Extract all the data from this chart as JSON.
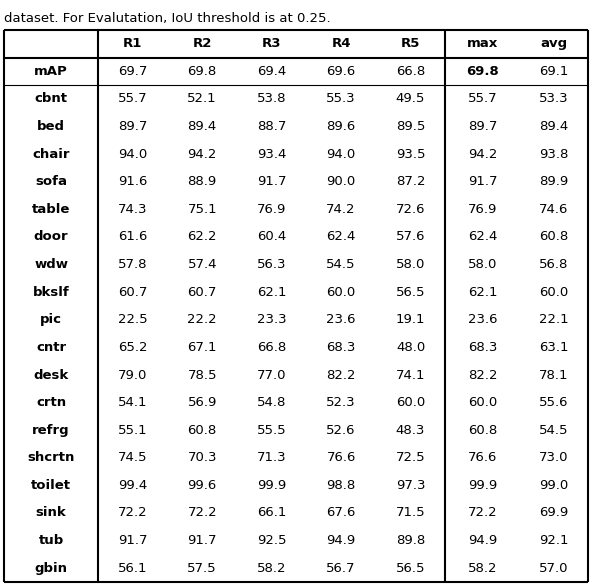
{
  "caption": "dataset. For Evalutation, IoU threshold is at 0.25.",
  "header_cols": [
    "R1",
    "R2",
    "R3",
    "R4",
    "R5",
    "max",
    "avg"
  ],
  "rows": [
    {
      "label": "mAP",
      "values": [
        69.7,
        69.8,
        69.4,
        69.6,
        66.8,
        69.8,
        69.1
      ],
      "bold_max_col": 5
    },
    {
      "label": "cbnt",
      "values": [
        55.7,
        52.1,
        53.8,
        55.3,
        49.5,
        55.7,
        53.3
      ],
      "bold_max_col": -1
    },
    {
      "label": "bed",
      "values": [
        89.7,
        89.4,
        88.7,
        89.6,
        89.5,
        89.7,
        89.4
      ],
      "bold_max_col": -1
    },
    {
      "label": "chair",
      "values": [
        94.0,
        94.2,
        93.4,
        94.0,
        93.5,
        94.2,
        93.8
      ],
      "bold_max_col": -1
    },
    {
      "label": "sofa",
      "values": [
        91.6,
        88.9,
        91.7,
        90.0,
        87.2,
        91.7,
        89.9
      ],
      "bold_max_col": -1
    },
    {
      "label": "table",
      "values": [
        74.3,
        75.1,
        76.9,
        74.2,
        72.6,
        76.9,
        74.6
      ],
      "bold_max_col": -1
    },
    {
      "label": "door",
      "values": [
        61.6,
        62.2,
        60.4,
        62.4,
        57.6,
        62.4,
        60.8
      ],
      "bold_max_col": -1
    },
    {
      "label": "wdw",
      "values": [
        57.8,
        57.4,
        56.3,
        54.5,
        58.0,
        58.0,
        56.8
      ],
      "bold_max_col": -1
    },
    {
      "label": "bkslf",
      "values": [
        60.7,
        60.7,
        62.1,
        60.0,
        56.5,
        62.1,
        60.0
      ],
      "bold_max_col": -1
    },
    {
      "label": "pic",
      "values": [
        22.5,
        22.2,
        23.3,
        23.6,
        19.1,
        23.6,
        22.1
      ],
      "bold_max_col": -1
    },
    {
      "label": "cntr",
      "values": [
        65.2,
        67.1,
        66.8,
        68.3,
        48.0,
        68.3,
        63.1
      ],
      "bold_max_col": -1
    },
    {
      "label": "desk",
      "values": [
        79.0,
        78.5,
        77.0,
        82.2,
        74.1,
        82.2,
        78.1
      ],
      "bold_max_col": -1
    },
    {
      "label": "crtn",
      "values": [
        54.1,
        56.9,
        54.8,
        52.3,
        60.0,
        60.0,
        55.6
      ],
      "bold_max_col": -1
    },
    {
      "label": "refrg",
      "values": [
        55.1,
        60.8,
        55.5,
        52.6,
        48.3,
        60.8,
        54.5
      ],
      "bold_max_col": -1
    },
    {
      "label": "shcrtn",
      "values": [
        74.5,
        70.3,
        71.3,
        76.6,
        72.5,
        76.6,
        73.0
      ],
      "bold_max_col": -1
    },
    {
      "label": "toilet",
      "values": [
        99.4,
        99.6,
        99.9,
        98.8,
        97.3,
        99.9,
        99.0
      ],
      "bold_max_col": -1
    },
    {
      "label": "sink",
      "values": [
        72.2,
        72.2,
        66.1,
        67.6,
        71.5,
        72.2,
        69.9
      ],
      "bold_max_col": -1
    },
    {
      "label": "tub",
      "values": [
        91.7,
        91.7,
        92.5,
        94.9,
        89.8,
        94.9,
        92.1
      ],
      "bold_max_col": -1
    },
    {
      "label": "gbin",
      "values": [
        56.1,
        57.5,
        58.2,
        56.7,
        56.5,
        58.2,
        57.0
      ],
      "bold_max_col": -1
    }
  ],
  "figwidth": 5.92,
  "figheight": 5.86,
  "dpi": 100,
  "fontsize": 9.5,
  "caption_fontsize": 9.5
}
